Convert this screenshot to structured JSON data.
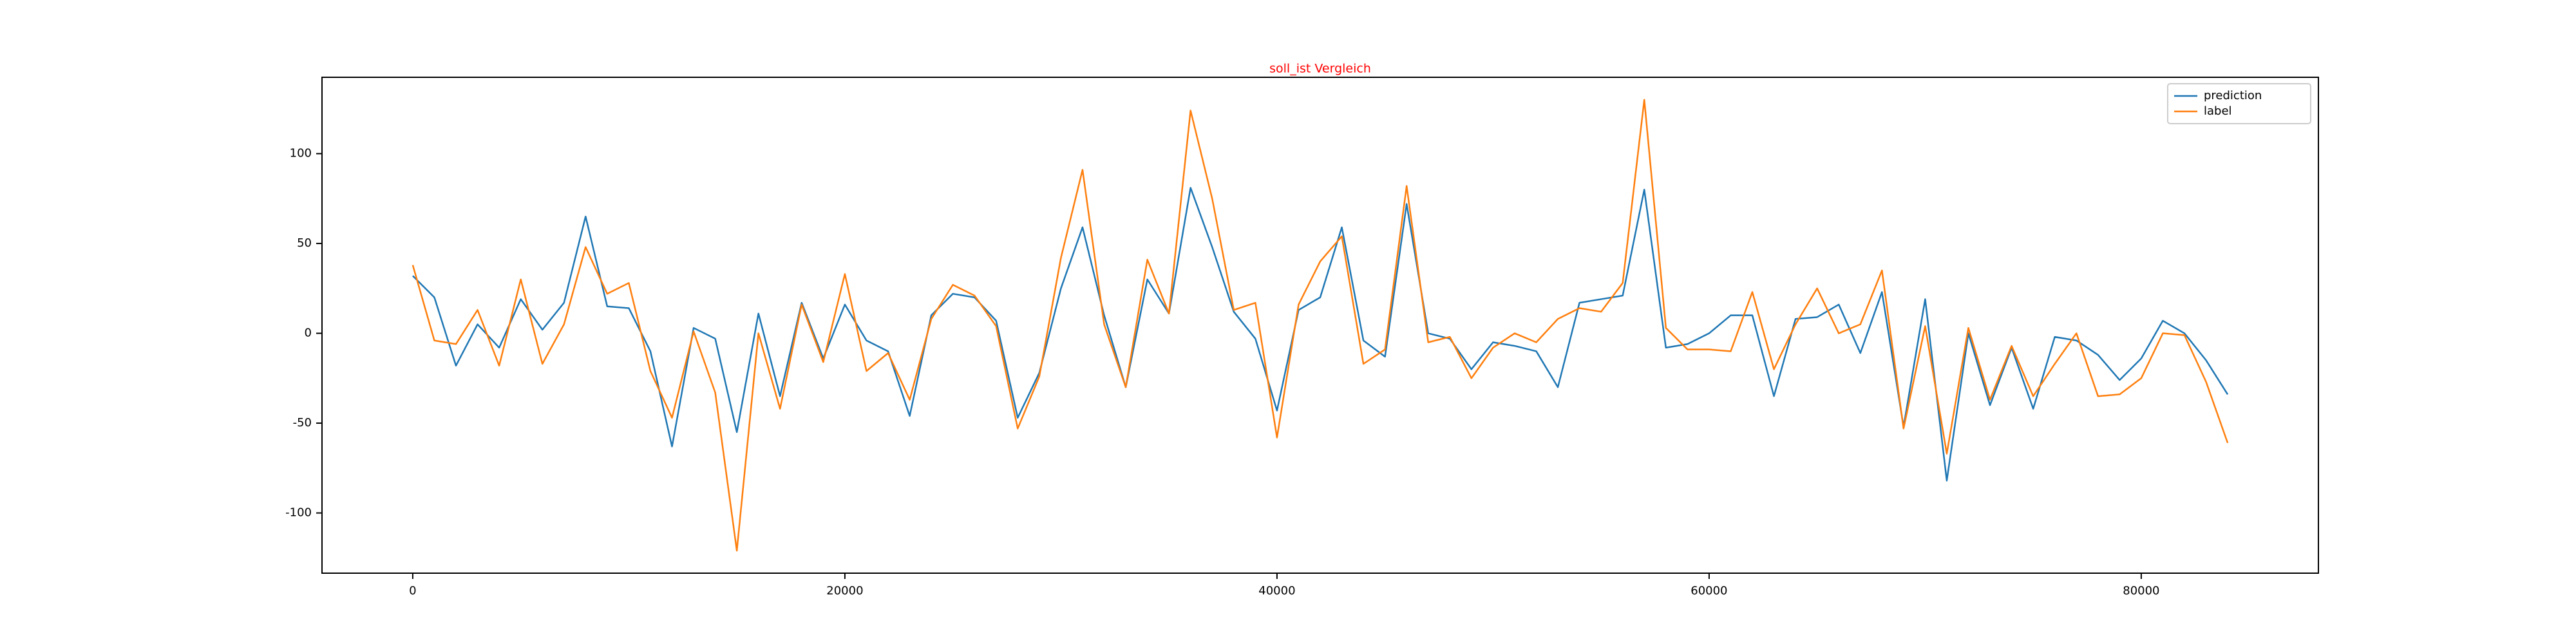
{
  "chart_data": {
    "type": "line",
    "title": "soll_ist Vergleich",
    "title_color": "#ff0000",
    "x": [
      0,
      1000,
      2000,
      3000,
      4000,
      5000,
      6000,
      7000,
      8000,
      9000,
      10000,
      11000,
      12000,
      13000,
      14000,
      15000,
      16000,
      17000,
      18000,
      19000,
      20000,
      21000,
      22000,
      23000,
      24000,
      25000,
      26000,
      27000,
      28000,
      29000,
      30000,
      31000,
      32000,
      33000,
      34000,
      35000,
      36000,
      37000,
      38000,
      39000,
      40000,
      41000,
      42000,
      43000,
      44000,
      45000,
      46000,
      47000,
      48000,
      49000,
      50000,
      51000,
      52000,
      53000,
      54000,
      55000,
      56000,
      57000,
      58000,
      59000,
      60000,
      61000,
      62000,
      63000,
      64000,
      65000,
      66000,
      67000,
      68000,
      69000,
      70000,
      71000,
      72000,
      73000,
      74000,
      75000,
      76000,
      77000,
      78000,
      79000,
      80000,
      81000,
      82000,
      83000,
      84000
    ],
    "series": [
      {
        "name": "prediction",
        "color": "#1f77b4",
        "values": [
          32,
          20,
          -18,
          5,
          -8,
          19,
          2,
          17,
          65,
          15,
          14,
          -10,
          -63,
          3,
          -3,
          -55,
          11,
          -35,
          17,
          -14,
          16,
          -4,
          -10,
          -46,
          10,
          22,
          20,
          7,
          -47,
          -22,
          25,
          59,
          10,
          -30,
          30,
          11,
          81,
          48,
          12,
          -3,
          -43,
          13,
          20,
          59,
          -4,
          -13,
          72,
          0,
          -3,
          -20,
          -5,
          -7,
          -10,
          -30,
          17,
          19,
          21,
          80,
          -8,
          -6,
          0,
          10,
          10,
          -35,
          8,
          9,
          16,
          -11,
          23,
          -52,
          19,
          -82,
          0,
          -40,
          -8,
          -42,
          -2,
          -4,
          -12,
          -26,
          -14,
          7,
          0,
          -15,
          -34
        ]
      },
      {
        "name": "label",
        "color": "#ff7f0e",
        "values": [
          38,
          -4,
          -6,
          13,
          -18,
          30,
          -17,
          5,
          48,
          22,
          28,
          -21,
          -47,
          1,
          -33,
          -121,
          0,
          -42,
          16,
          -16,
          33,
          -21,
          -11,
          -37,
          8,
          27,
          21,
          4,
          -53,
          -24,
          42,
          91,
          5,
          -30,
          41,
          11,
          124,
          75,
          13,
          17,
          -58,
          16,
          40,
          54,
          -17,
          -9,
          82,
          -5,
          -2,
          -25,
          -8,
          0,
          -5,
          8,
          14,
          12,
          28,
          130,
          3,
          -9,
          -9,
          -10,
          23,
          -20,
          5,
          25,
          0,
          5,
          35,
          -53,
          4,
          -67,
          3,
          -37,
          -7,
          -35,
          -17,
          0,
          -35,
          -34,
          -25,
          0,
          -1,
          -27,
          -61
        ]
      }
    ],
    "xlim": [
      -4200,
      88200
    ],
    "ylim": [
      -133.5,
      142.5
    ],
    "xticks": [
      0,
      20000,
      40000,
      60000,
      80000
    ],
    "yticks": [
      -100,
      -50,
      0,
      50,
      100
    ],
    "legend": "upper right"
  }
}
